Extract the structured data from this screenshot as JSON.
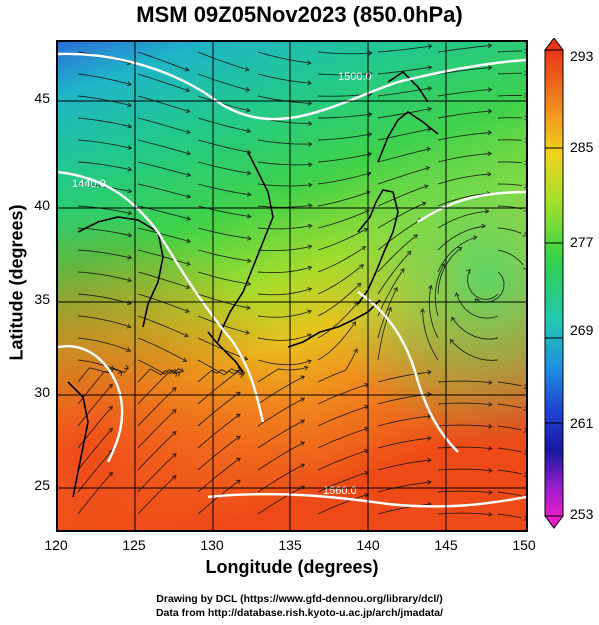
{
  "title": "MSM 09Z05Nov2023 (850.0hPa)",
  "xaxis": {
    "label": "Longitude (degrees)",
    "ticks": [
      "120",
      "125",
      "130",
      "135",
      "140",
      "145",
      "150"
    ]
  },
  "yaxis": {
    "label": "Latitude  (degrees)",
    "ticks": [
      "25",
      "30",
      "35",
      "40",
      "45"
    ]
  },
  "colorbar": {
    "ticks": [
      "293",
      "285",
      "277",
      "269",
      "261",
      "253"
    ]
  },
  "contour_labels": [
    "1500.0",
    "1440.0",
    "1560.0"
  ],
  "footer": {
    "line1": "Drawing by DCL (https://www.gfd-dennou.org/library/dcl/)",
    "line2": "Data from http://database.rish.kyoto-u.ac.jp/arch/jmadata/"
  },
  "map_region": {
    "lon_range": [
      120,
      150
    ],
    "lat_range": [
      22.5,
      48
    ]
  }
}
